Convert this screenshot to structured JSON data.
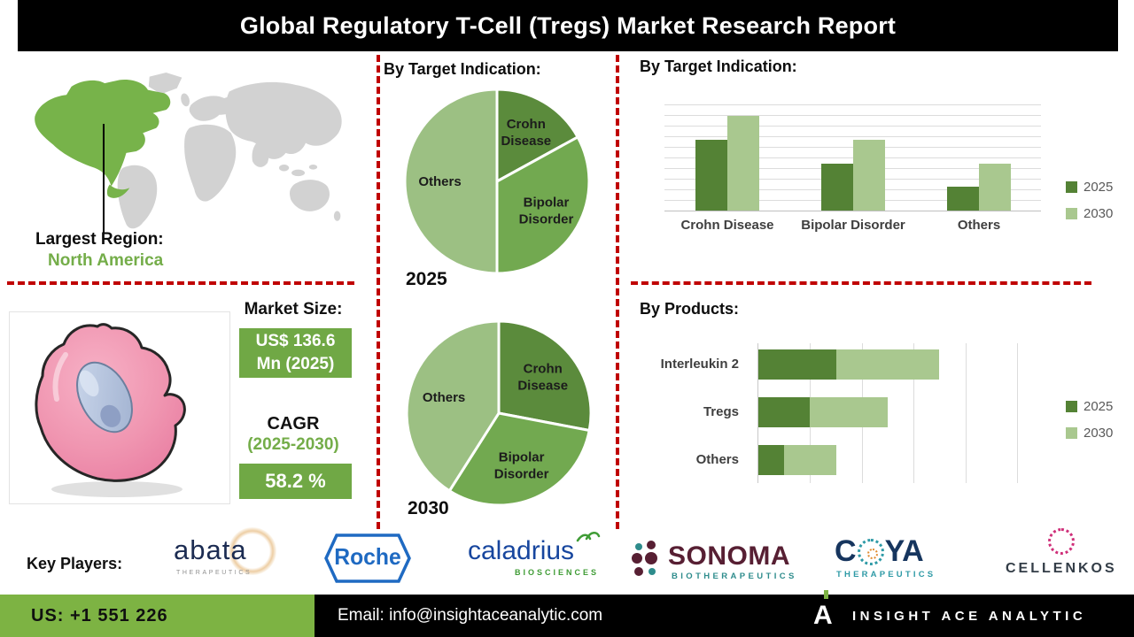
{
  "title": "Global Regulatory T-Cell (Tregs) Market Research Report",
  "region": {
    "label": "Largest Region:",
    "value": "North America"
  },
  "market": {
    "size_label": "Market Size:",
    "size_value_line1": "US$ 136.6",
    "size_value_line2": "Mn (2025)",
    "cagr_label": "CAGR",
    "cagr_period": "(2025-2030)",
    "cagr_value": "58.2 %"
  },
  "colors": {
    "accent_green": "#74ad49",
    "dark_green": "#548235",
    "mid_green": "#72a950",
    "light_green": "#a9c88f",
    "footer_green": "#7db343",
    "dashed_red": "#c00000"
  },
  "chart_data": [
    {
      "type": "pie",
      "title": "By Target Indication:",
      "year_label": "2025",
      "slices": [
        {
          "label": "Crohn Disease",
          "value": 17,
          "color": "#5b8b3c"
        },
        {
          "label": "Bipolar Disorder",
          "value": 33,
          "color": "#72a950"
        },
        {
          "label": "Others",
          "value": 50,
          "color": "#9cc083"
        }
      ]
    },
    {
      "type": "pie",
      "title": "By Target Indication:",
      "year_label": "2030",
      "slices": [
        {
          "label": "Crohn Disease",
          "value": 28,
          "color": "#5b8b3c"
        },
        {
          "label": "Bipolar Disorder",
          "value": 31,
          "color": "#72a950"
        },
        {
          "label": "Others",
          "value": 41,
          "color": "#9cc083"
        }
      ]
    },
    {
      "type": "bar",
      "title": "By Target Indication:",
      "categories": [
        "Crohn Disease",
        "Bipolar Disorder",
        "Others"
      ],
      "series": [
        {
          "name": "2025",
          "color": "#548235",
          "values": [
            3,
            2,
            1
          ]
        },
        {
          "name": "2030",
          "color": "#a9c88f",
          "values": [
            4,
            3,
            2
          ]
        }
      ],
      "ylim": [
        0,
        4.5
      ],
      "gridlines": 10,
      "legend_position": "right"
    },
    {
      "type": "stacked-bar-horizontal",
      "title": "By Products:",
      "categories": [
        "Interleukin 2",
        "Tregs",
        "Others"
      ],
      "series": [
        {
          "name": "2025",
          "color": "#548235",
          "values": [
            1.5,
            1,
            0.5
          ]
        },
        {
          "name": "2030",
          "color": "#a9c88f",
          "values": [
            2,
            1.5,
            1
          ]
        }
      ],
      "xlim": [
        0,
        5
      ],
      "gridlines": 6,
      "legend_position": "right"
    }
  ],
  "key_players": {
    "label": "Key Players:",
    "logos": [
      {
        "name": "abata",
        "sub": "THERAPEUTICS"
      },
      {
        "name": "Roche"
      },
      {
        "name": "caladrius",
        "sub": "BIOSCIENCES"
      },
      {
        "name": "SONOMA",
        "sub": "BIOTHERAPEUTICS"
      },
      {
        "name": "COYA",
        "c": "C",
        "ya": "YA",
        "sub": "THERAPEUTICS"
      },
      {
        "name": "CELLENKOS"
      }
    ]
  },
  "footer": {
    "phone": "US: +1 551 226",
    "email": "Email: info@insightaceanalytic.com",
    "brand": "INSIGHT ACE ANALYTIC",
    "brand_mark": "A"
  }
}
